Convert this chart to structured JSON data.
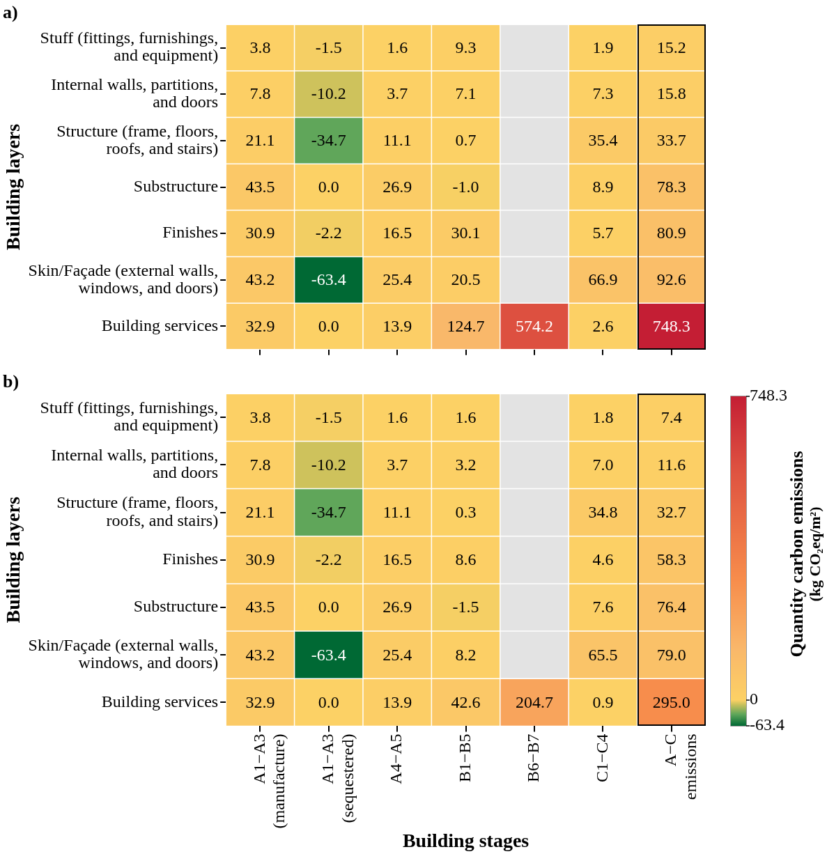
{
  "chart_data": [
    {
      "type": "heatmap",
      "title": "a)",
      "ylabel": "Building layers",
      "tick_labels": "y",
      "categories": [
        null,
        null,
        null,
        null,
        null,
        null,
        null
      ],
      "y_categories": [
        "Stuff (fittings, furnishings, and equipment)",
        "Internal walls, partitions, and doors",
        "Structure (frame, floors, roofs, and stairs)",
        "Substructure",
        "Finishes",
        "Skin/Façade (external walls, windows, and doors)",
        "Building services"
      ],
      "cells": [
        [
          3.8,
          -1.5,
          1.6,
          9.3,
          null,
          1.9,
          15.2
        ],
        [
          7.8,
          -10.2,
          3.7,
          7.1,
          null,
          7.3,
          15.8
        ],
        [
          21.1,
          -34.7,
          11.1,
          0.7,
          null,
          35.4,
          33.7
        ],
        [
          43.5,
          0.0,
          26.9,
          -1.0,
          null,
          8.9,
          78.3
        ],
        [
          30.9,
          -2.2,
          16.5,
          30.1,
          null,
          5.7,
          80.9
        ],
        [
          43.2,
          -63.4,
          25.4,
          20.5,
          null,
          66.9,
          92.6
        ],
        [
          32.9,
          0.0,
          13.9,
          124.7,
          574.2,
          2.6,
          748.3
        ]
      ],
      "cell_labels": [
        [
          "3.8",
          "-1.5",
          "1.6",
          "9.3",
          null,
          "1.9",
          "15.2"
        ],
        [
          "7.8",
          "-10.2",
          "3.7",
          "7.1",
          null,
          "7.3",
          "15.8"
        ],
        [
          "21.1",
          "-34.7",
          "11.1",
          "0.7",
          null,
          "35.4",
          "33.7"
        ],
        [
          "43.5",
          "0.0",
          "26.9",
          "-1.0",
          null,
          "8.9",
          "78.3"
        ],
        [
          "30.9",
          "-2.2",
          "16.5",
          "30.1",
          null,
          "5.7",
          "80.9"
        ],
        [
          "43.2",
          "-63.4",
          "25.4",
          "20.5",
          null,
          "66.9",
          "92.6"
        ],
        [
          "32.9",
          "0.0",
          "13.9",
          "124.7",
          "574.2",
          "2.6",
          "748.3"
        ]
      ]
    },
    {
      "type": "heatmap",
      "title": "b)",
      "ylabel": "Building layers",
      "xlabel": "Building stages",
      "categories": [
        "A1−A3 (manufacture)",
        "A1−A3 (sequestered)",
        "A4−A5",
        "B1−B5",
        "B6−B7",
        "C1−C4",
        "A−C emissions"
      ],
      "y_categories": [
        "Stuff (fittings, furnishings, and equipment)",
        "Internal walls, partitions, and doors",
        "Structure (frame, floors, roofs, and stairs)",
        "Finishes",
        "Substructure",
        "Skin/Façade (external walls, windows, and doors)",
        "Building services"
      ],
      "cells": [
        [
          3.8,
          -1.5,
          1.6,
          1.6,
          null,
          1.8,
          7.4
        ],
        [
          7.8,
          -10.2,
          3.7,
          3.2,
          null,
          7.0,
          11.6
        ],
        [
          21.1,
          -34.7,
          11.1,
          0.3,
          null,
          34.8,
          32.7
        ],
        [
          30.9,
          -2.2,
          16.5,
          8.6,
          null,
          4.6,
          58.3
        ],
        [
          43.5,
          0.0,
          26.9,
          -1.5,
          null,
          7.6,
          76.4
        ],
        [
          43.2,
          -63.4,
          25.4,
          8.2,
          null,
          65.5,
          79.0
        ],
        [
          32.9,
          0.0,
          13.9,
          42.6,
          204.7,
          0.9,
          295.0
        ]
      ],
      "cell_labels": [
        [
          "3.8",
          "-1.5",
          "1.6",
          "1.6",
          null,
          "1.8",
          "7.4"
        ],
        [
          "7.8",
          "-10.2",
          "3.7",
          "3.2",
          null,
          "7.0",
          "11.6"
        ],
        [
          "21.1",
          "-34.7",
          "11.1",
          "0.3",
          null,
          "34.8",
          "32.7"
        ],
        [
          "30.9",
          "-2.2",
          "16.5",
          "8.6",
          null,
          "4.6",
          "58.3"
        ],
        [
          "43.5",
          "0.0",
          "26.9",
          "-1.5",
          null,
          "7.6",
          "76.4"
        ],
        [
          "43.2",
          "-63.4",
          "25.4",
          "8.2",
          null,
          "65.5",
          "79.0"
        ],
        [
          "32.9",
          "0.0",
          "13.9",
          "42.6",
          "204.7",
          "0.9",
          "295.0"
        ]
      ],
      "clim": [
        -63.4,
        748.3
      ],
      "cticks": [
        -63.4,
        0,
        748.3
      ],
      "clabel": "Quantity carbon emissions (kg CO₂eq/m²)"
    }
  ]
}
